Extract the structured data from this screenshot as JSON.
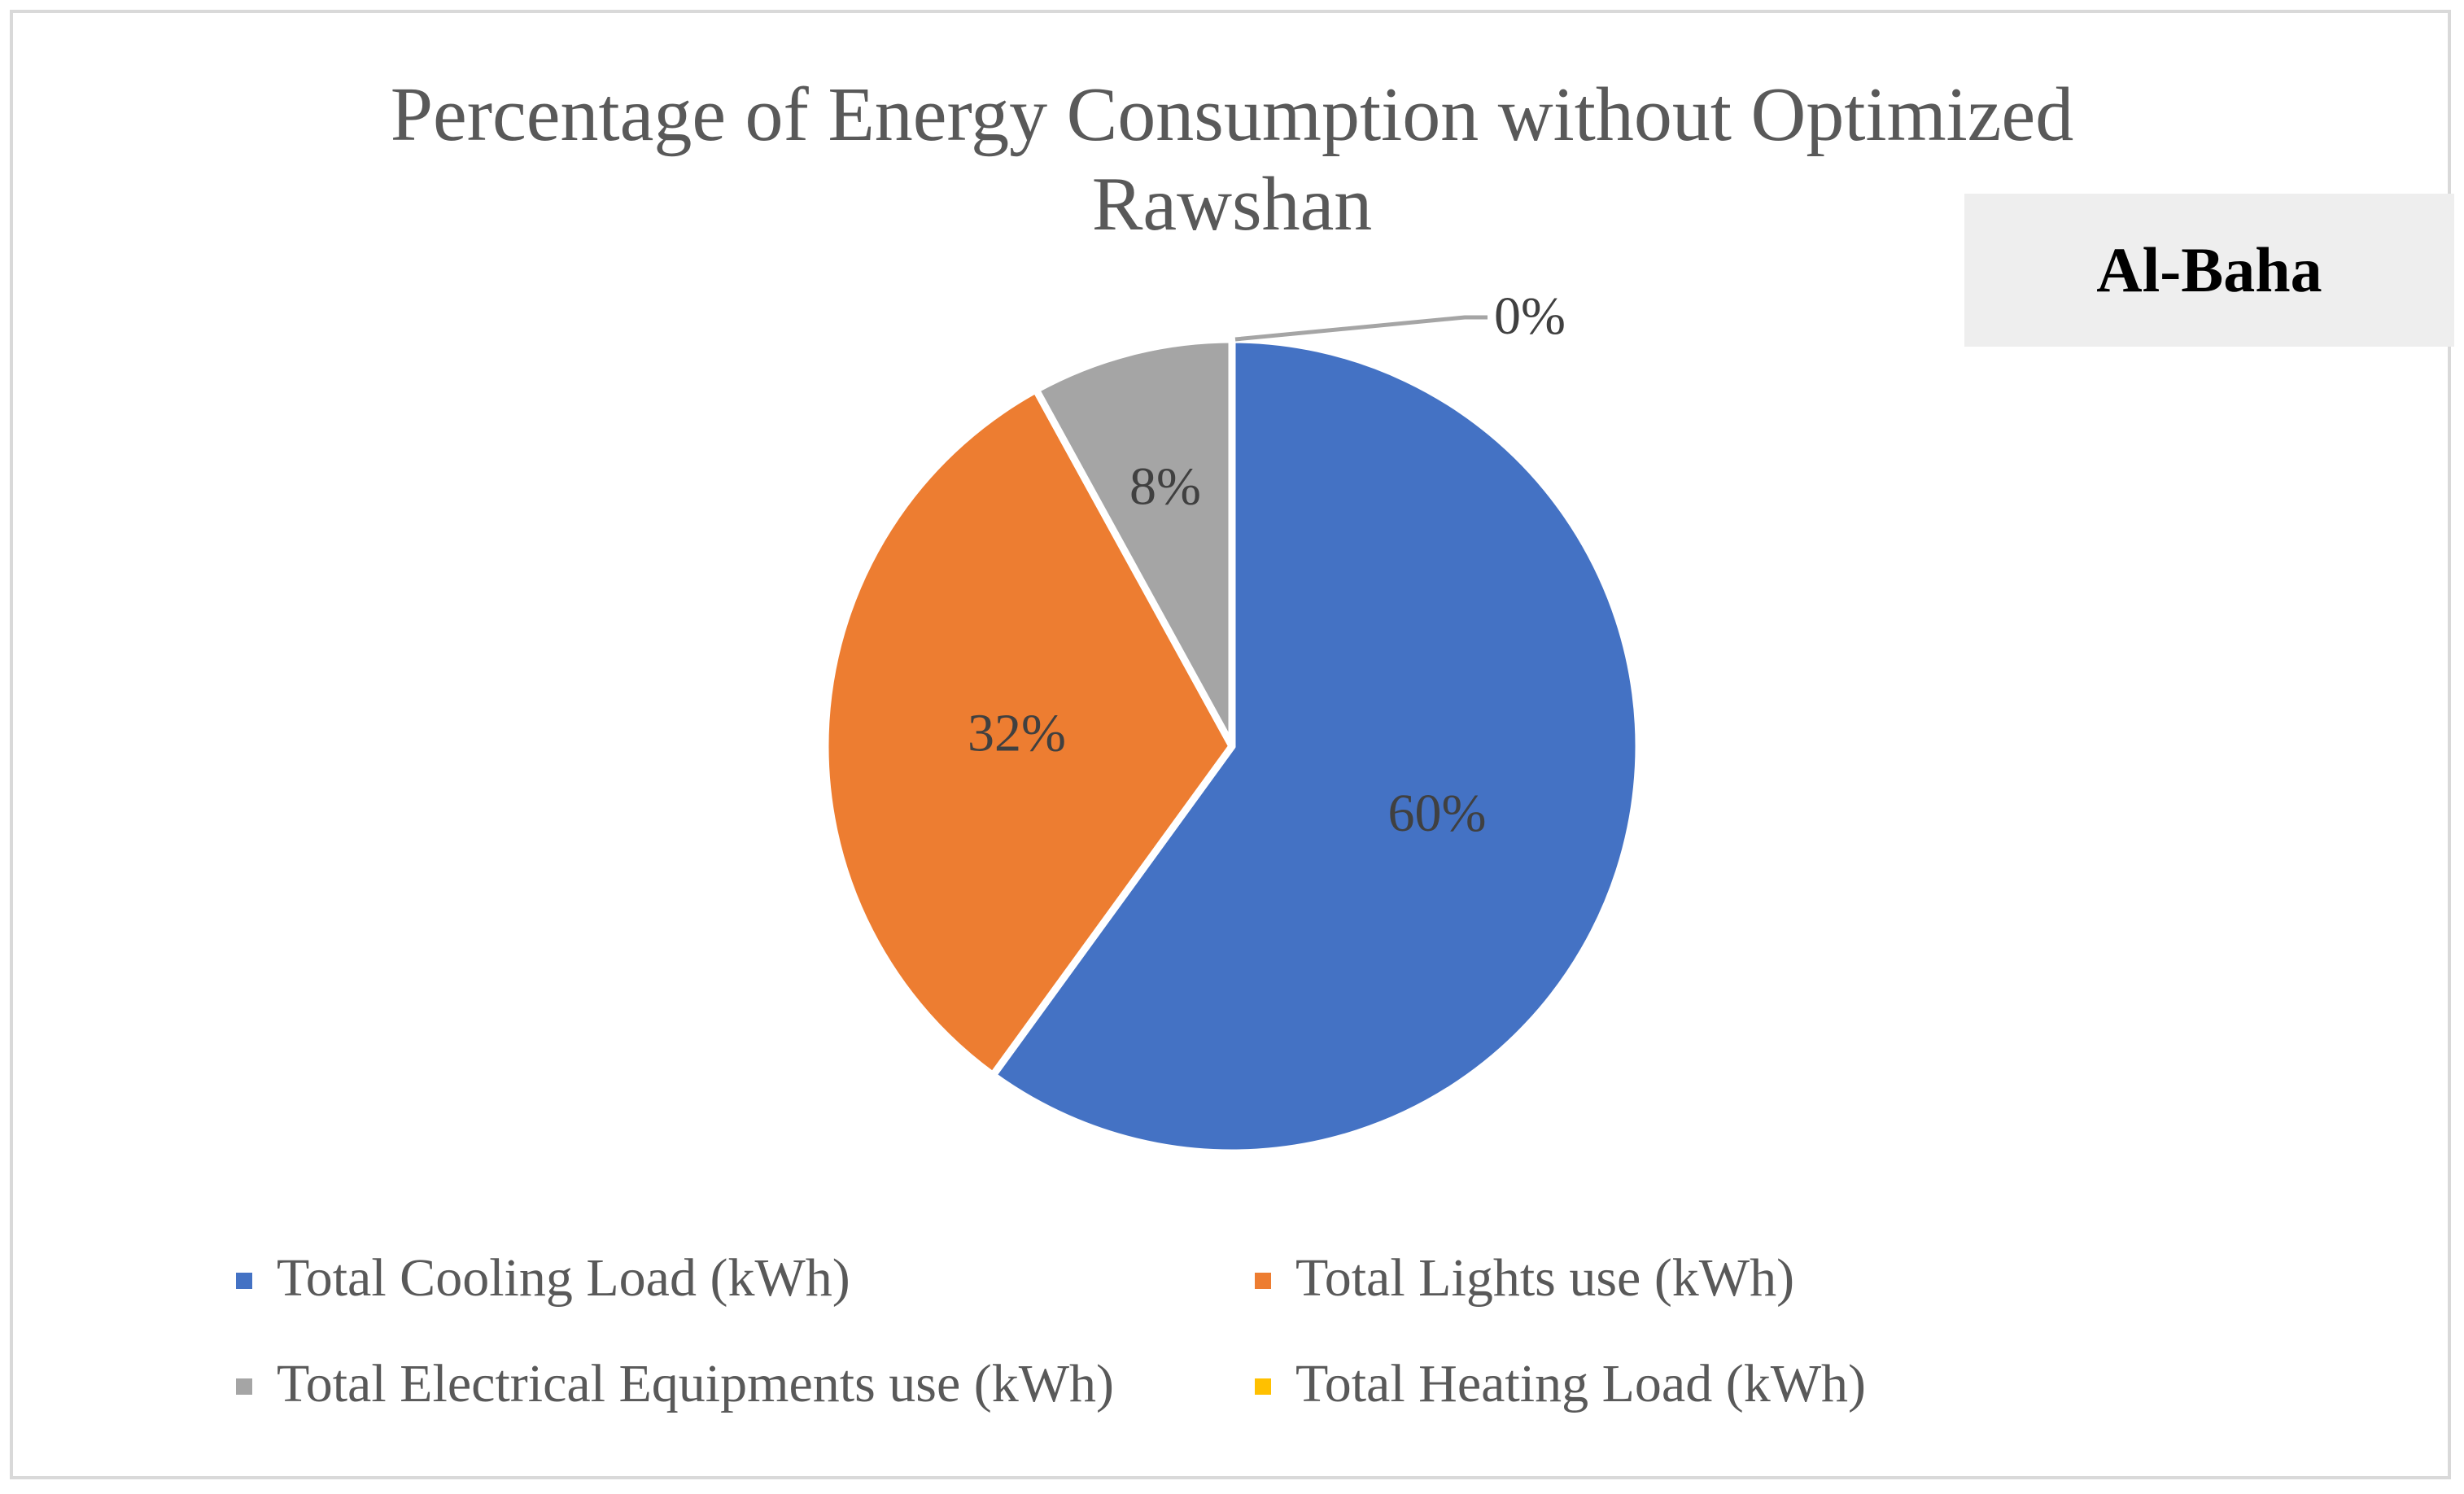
{
  "chart_data": {
    "type": "pie",
    "title": "Percentage of Energy Consumption without Optimized Rawshan",
    "title_lines": [
      "Percentage of Energy Consumption without Optimized",
      "Rawshan"
    ],
    "categories": [
      "Total Cooling Load (kWh)",
      "Total Lights use (kWh)",
      "Total Electrical Equipments use (kWh)",
      "Total Heating Load (kWh)"
    ],
    "values": [
      60,
      32,
      8,
      0
    ],
    "data_labels": [
      "60%",
      "32%",
      "8%",
      "0%"
    ],
    "colors": [
      "#4472c4",
      "#ed7d31",
      "#a5a5a5",
      "#ffc000"
    ],
    "legend_position": "bottom"
  },
  "annotation": {
    "location": "Al-Baha"
  },
  "colors": {
    "title": "#595959",
    "label": "#404040",
    "frame": "#d9d9d9",
    "leader": "#a5a5a5",
    "annotation_bg": "#eeeeee"
  }
}
